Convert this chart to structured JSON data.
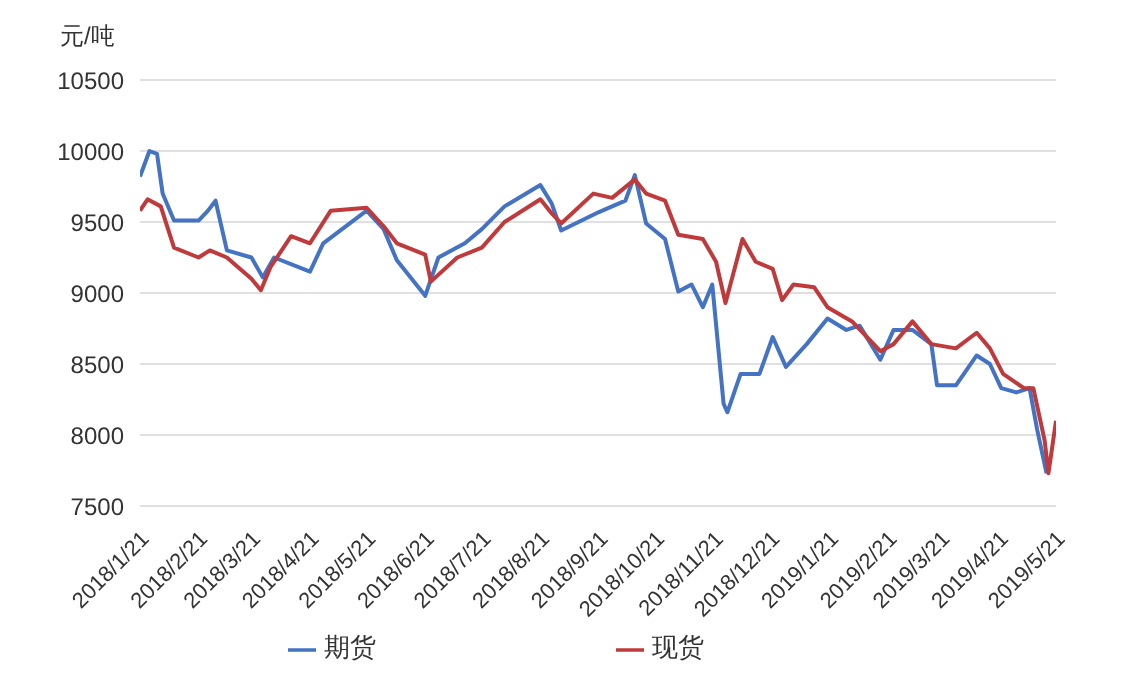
{
  "chart_data": {
    "type": "line",
    "ylabel": "元/吨",
    "xlim": [
      "2018-01-21",
      "2019-05-21"
    ],
    "xticks": [
      {
        "value": "2018-01-21",
        "label": "2018/1/21"
      },
      {
        "value": "2018-02-21",
        "label": "2018/2/21"
      },
      {
        "value": "2018-03-21",
        "label": "2018/3/21"
      },
      {
        "value": "2018-04-21",
        "label": "2018/4/21"
      },
      {
        "value": "2018-05-21",
        "label": "2018/5/21"
      },
      {
        "value": "2018-06-21",
        "label": "2018/6/21"
      },
      {
        "value": "2018-07-21",
        "label": "2018/7/21"
      },
      {
        "value": "2018-08-21",
        "label": "2018/8/21"
      },
      {
        "value": "2018-09-21",
        "label": "2018/9/21"
      },
      {
        "value": "2018-10-21",
        "label": "2018/10/21"
      },
      {
        "value": "2018-11-21",
        "label": "2018/11/21"
      },
      {
        "value": "2018-12-21",
        "label": "2018/12/21"
      },
      {
        "value": "2019-01-21",
        "label": "2019/1/21"
      },
      {
        "value": "2019-02-21",
        "label": "2019/2/21"
      },
      {
        "value": "2019-03-21",
        "label": "2019/3/21"
      },
      {
        "value": "2019-04-21",
        "label": "2019/4/21"
      },
      {
        "value": "2019-05-21",
        "label": "2019/5/21"
      }
    ],
    "ylim": [
      7500,
      10500
    ],
    "yticks": [
      7500,
      8000,
      8500,
      9000,
      9500,
      10000,
      10500
    ],
    "grid": "y",
    "legend": "bottom",
    "marker": "none",
    "line_style": "solid",
    "series": [
      {
        "name": "期货",
        "color": "#4472c4",
        "x": [
          "2018-01-21",
          "2018-01-26",
          "2018-01-30",
          "2018-02-02",
          "2018-02-08",
          "2018-02-21",
          "2018-02-26",
          "2018-03-02",
          "2018-03-08",
          "2018-03-21",
          "2018-03-27",
          "2018-04-02",
          "2018-04-21",
          "2018-04-28",
          "2018-05-21",
          "2018-05-30",
          "2018-06-06",
          "2018-06-21",
          "2018-06-28",
          "2018-07-12",
          "2018-07-21",
          "2018-08-02",
          "2018-08-21",
          "2018-08-27",
          "2018-09-01",
          "2018-09-21",
          "2018-10-05",
          "2018-10-10",
          "2018-10-16",
          "2018-10-26",
          "2018-11-02",
          "2018-11-09",
          "2018-11-15",
          "2018-11-20",
          "2018-11-26",
          "2018-11-28",
          "2018-12-05",
          "2018-12-15",
          "2018-12-22",
          "2018-12-29",
          "2019-01-09",
          "2019-01-20",
          "2019-01-30",
          "2019-02-06",
          "2019-02-17",
          "2019-02-24",
          "2019-03-06",
          "2019-03-16",
          "2019-03-19",
          "2019-03-29",
          "2019-04-09",
          "2019-04-16",
          "2019-04-22",
          "2019-04-30",
          "2019-05-07",
          "2019-05-11",
          "2019-05-16"
        ],
        "values": [
          9820,
          10000,
          9980,
          9700,
          9510,
          9510,
          9580,
          9650,
          9300,
          9250,
          9110,
          9250,
          9150,
          9350,
          9580,
          9450,
          9230,
          8980,
          9250,
          9350,
          9450,
          9610,
          9760,
          9630,
          9440,
          9570,
          9650,
          9830,
          9490,
          9380,
          9010,
          9060,
          8900,
          9060,
          8220,
          8160,
          8430,
          8430,
          8690,
          8480,
          8640,
          8820,
          8740,
          8770,
          8530,
          8740,
          8740,
          8640,
          8350,
          8350,
          8560,
          8500,
          8330,
          8300,
          8330,
          8040,
          7730
        ]
      },
      {
        "name": "现货",
        "color": "#c0393b",
        "x": [
          "2018-01-21",
          "2018-01-25",
          "2018-02-01",
          "2018-02-08",
          "2018-02-21",
          "2018-02-27",
          "2018-03-08",
          "2018-03-21",
          "2018-03-26",
          "2018-03-31",
          "2018-04-11",
          "2018-04-21",
          "2018-05-02",
          "2018-05-21",
          "2018-05-30",
          "2018-06-06",
          "2018-06-21",
          "2018-06-24",
          "2018-07-08",
          "2018-07-21",
          "2018-08-02",
          "2018-08-21",
          "2018-08-27",
          "2018-09-01",
          "2018-09-18",
          "2018-09-28",
          "2018-10-10",
          "2018-10-16",
          "2018-10-26",
          "2018-11-02",
          "2018-11-15",
          "2018-11-22",
          "2018-11-27",
          "2018-12-06",
          "2018-12-13",
          "2018-12-22",
          "2018-12-27",
          "2019-01-02",
          "2019-01-13",
          "2019-01-20",
          "2019-02-02",
          "2019-02-17",
          "2019-02-24",
          "2019-03-06",
          "2019-03-16",
          "2019-03-29",
          "2019-04-09",
          "2019-04-16",
          "2019-04-23",
          "2019-05-04",
          "2019-05-09",
          "2019-05-15",
          "2019-05-17",
          "2019-05-21"
        ],
        "values": [
          9580,
          9660,
          9610,
          9320,
          9250,
          9300,
          9250,
          9100,
          9020,
          9180,
          9400,
          9350,
          9580,
          9600,
          9470,
          9350,
          9270,
          9080,
          9250,
          9320,
          9500,
          9660,
          9560,
          9490,
          9700,
          9670,
          9800,
          9700,
          9650,
          9410,
          9380,
          9220,
          8930,
          9380,
          9220,
          9170,
          8950,
          9060,
          9040,
          8900,
          8800,
          8590,
          8640,
          8800,
          8640,
          8610,
          8720,
          8610,
          8430,
          8330,
          8330,
          7960,
          7730,
          8100
        ]
      }
    ]
  }
}
